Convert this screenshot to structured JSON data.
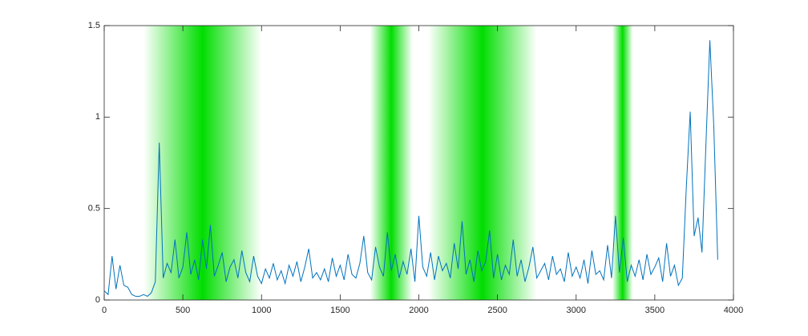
{
  "chart_data": {
    "type": "line",
    "x": [
      0,
      25,
      50,
      75,
      100,
      125,
      150,
      175,
      200,
      225,
      250,
      275,
      300,
      325,
      350,
      375,
      400,
      425,
      450,
      475,
      500,
      525,
      550,
      575,
      600,
      625,
      650,
      675,
      700,
      725,
      750,
      775,
      800,
      825,
      850,
      875,
      900,
      925,
      950,
      975,
      1000,
      1025,
      1050,
      1075,
      1100,
      1125,
      1150,
      1175,
      1200,
      1225,
      1250,
      1275,
      1300,
      1325,
      1350,
      1375,
      1400,
      1425,
      1450,
      1475,
      1500,
      1525,
      1550,
      1575,
      1600,
      1625,
      1650,
      1675,
      1700,
      1725,
      1750,
      1775,
      1800,
      1825,
      1850,
      1875,
      1900,
      1925,
      1950,
      1975,
      2000,
      2025,
      2050,
      2075,
      2100,
      2125,
      2150,
      2175,
      2200,
      2225,
      2250,
      2275,
      2300,
      2325,
      2350,
      2375,
      2400,
      2425,
      2450,
      2475,
      2500,
      2525,
      2550,
      2575,
      2600,
      2625,
      2650,
      2675,
      2700,
      2725,
      2750,
      2775,
      2800,
      2825,
      2850,
      2875,
      2900,
      2925,
      2950,
      2975,
      3000,
      3025,
      3050,
      3075,
      3100,
      3125,
      3150,
      3175,
      3200,
      3225,
      3250,
      3275,
      3300,
      3325,
      3350,
      3375,
      3400,
      3425,
      3450,
      3475,
      3500,
      3525,
      3550,
      3575,
      3600,
      3625,
      3650,
      3675,
      3700,
      3725,
      3750,
      3775,
      3800,
      3825,
      3850,
      3875,
      3900
    ],
    "series": [
      {
        "color": "#0072bd",
        "values": [
          0.05,
          0.03,
          0.24,
          0.06,
          0.19,
          0.08,
          0.07,
          0.03,
          0.02,
          0.02,
          0.03,
          0.02,
          0.04,
          0.1,
          0.86,
          0.12,
          0.2,
          0.15,
          0.33,
          0.12,
          0.18,
          0.37,
          0.14,
          0.22,
          0.11,
          0.33,
          0.17,
          0.41,
          0.13,
          0.19,
          0.26,
          0.1,
          0.18,
          0.22,
          0.12,
          0.27,
          0.15,
          0.1,
          0.24,
          0.13,
          0.09,
          0.17,
          0.12,
          0.2,
          0.11,
          0.16,
          0.09,
          0.19,
          0.13,
          0.21,
          0.1,
          0.18,
          0.28,
          0.12,
          0.15,
          0.11,
          0.17,
          0.1,
          0.23,
          0.13,
          0.19,
          0.11,
          0.25,
          0.14,
          0.12,
          0.2,
          0.35,
          0.15,
          0.11,
          0.29,
          0.18,
          0.13,
          0.37,
          0.16,
          0.25,
          0.12,
          0.21,
          0.14,
          0.28,
          0.1,
          0.46,
          0.18,
          0.13,
          0.26,
          0.11,
          0.24,
          0.16,
          0.2,
          0.12,
          0.31,
          0.17,
          0.43,
          0.14,
          0.22,
          0.1,
          0.27,
          0.16,
          0.21,
          0.38,
          0.12,
          0.25,
          0.11,
          0.19,
          0.14,
          0.33,
          0.13,
          0.22,
          0.1,
          0.18,
          0.29,
          0.12,
          0.16,
          0.2,
          0.11,
          0.24,
          0.14,
          0.17,
          0.1,
          0.26,
          0.13,
          0.18,
          0.12,
          0.22,
          0.09,
          0.27,
          0.14,
          0.16,
          0.11,
          0.3,
          0.12,
          0.46,
          0.15,
          0.34,
          0.1,
          0.19,
          0.13,
          0.22,
          0.11,
          0.25,
          0.14,
          0.18,
          0.23,
          0.1,
          0.31,
          0.13,
          0.19,
          0.08,
          0.12,
          0.61,
          1.03,
          0.35,
          0.45,
          0.26,
          0.85,
          1.42,
          0.95,
          0.22
        ]
      }
    ],
    "shaded_regions": [
      {
        "start": 250,
        "end": 1000
      },
      {
        "start": 1690,
        "end": 1960
      },
      {
        "start": 2060,
        "end": 2750
      },
      {
        "start": 3230,
        "end": 3360
      }
    ],
    "shade_color": "#00dd00",
    "xlim": [
      0,
      4000
    ],
    "xticks": [
      0,
      500,
      1000,
      1500,
      2000,
      2500,
      3000,
      3500,
      4000
    ],
    "ylim": [
      0,
      1.5
    ],
    "yticks": [
      0,
      0.5,
      1,
      1.5
    ]
  }
}
